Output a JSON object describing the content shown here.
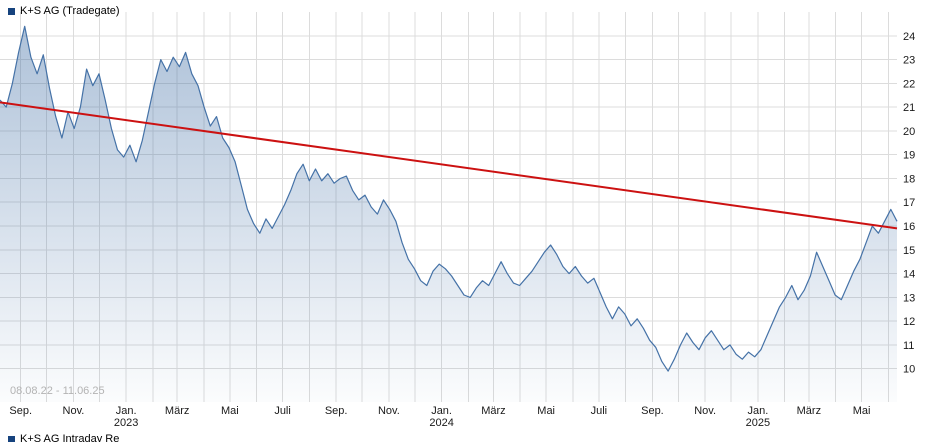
{
  "title": "K+S AG (Tradegate)",
  "legend": {
    "top_label": "K+S AG (Tradegate)",
    "bottom_label": "K+S AG Intraday Re",
    "marker_color": "#16437e"
  },
  "range_label": "08.08.22 - 11.06.25",
  "colors": {
    "line": "#4572a7",
    "area_fill": "#4572a7",
    "trend": "#cc1111",
    "grid": "#dcdcdc",
    "axis_text": "#1a1a1a",
    "range_text": "#b3b3b3",
    "background": "#ffffff"
  },
  "chart_data": {
    "type": "area",
    "title": "K+S AG (Tradegate)",
    "date_start": "08.08.22",
    "date_end": "11.06.25",
    "total_days": 1038,
    "ylim": [
      8.6,
      25.0
    ],
    "grid": true,
    "legend_position": "top-left",
    "ylabel": "",
    "xlabel": "",
    "y_ticks": [
      10,
      11,
      12,
      13,
      14,
      15,
      16,
      17,
      18,
      19,
      20,
      21,
      22,
      23,
      24
    ],
    "x_month_gridlines_days": [
      24,
      54,
      85,
      115,
      146,
      177,
      205,
      236,
      266,
      297,
      327,
      358,
      389,
      419,
      450,
      480,
      511,
      542,
      571,
      602,
      632,
      663,
      693,
      724,
      755,
      785,
      816,
      846,
      877,
      908,
      936,
      967,
      997,
      1028
    ],
    "x_ticks": [
      {
        "day": 24,
        "label": "Sep."
      },
      {
        "day": 85,
        "label": "Nov."
      },
      {
        "day": 146,
        "label": "Jan.",
        "year": "2023"
      },
      {
        "day": 205,
        "label": "März"
      },
      {
        "day": 266,
        "label": "Mai"
      },
      {
        "day": 327,
        "label": "Juli"
      },
      {
        "day": 389,
        "label": "Sep."
      },
      {
        "day": 450,
        "label": "Nov."
      },
      {
        "day": 511,
        "label": "Jan.",
        "year": "2024"
      },
      {
        "day": 571,
        "label": "März"
      },
      {
        "day": 632,
        "label": "Mai"
      },
      {
        "day": 693,
        "label": "Juli"
      },
      {
        "day": 755,
        "label": "Sep."
      },
      {
        "day": 816,
        "label": "Nov."
      },
      {
        "day": 877,
        "label": "Jan.",
        "year": "2025"
      },
      {
        "day": 936,
        "label": "März"
      },
      {
        "day": 997,
        "label": "Mai"
      }
    ],
    "series": [
      {
        "name": "K+S AG (Tradegate)",
        "values": [
          21.3,
          21.0,
          22.0,
          23.3,
          24.4,
          23.1,
          22.4,
          23.2,
          21.8,
          20.6,
          19.7,
          20.8,
          20.1,
          21.0,
          22.6,
          21.9,
          22.4,
          21.3,
          20.1,
          19.2,
          18.9,
          19.4,
          18.7,
          19.6,
          20.8,
          22.0,
          23.0,
          22.5,
          23.1,
          22.7,
          23.3,
          22.4,
          21.9,
          21.0,
          20.2,
          20.6,
          19.7,
          19.3,
          18.7,
          17.7,
          16.7,
          16.1,
          15.7,
          16.3,
          15.9,
          16.4,
          16.9,
          17.5,
          18.2,
          18.6,
          17.9,
          18.4,
          17.9,
          18.2,
          17.8,
          18.0,
          18.1,
          17.5,
          17.1,
          17.3,
          16.8,
          16.5,
          17.1,
          16.7,
          16.2,
          15.3,
          14.6,
          14.2,
          13.7,
          13.5,
          14.1,
          14.4,
          14.2,
          13.9,
          13.5,
          13.1,
          13.0,
          13.4,
          13.7,
          13.5,
          14.0,
          14.5,
          14.0,
          13.6,
          13.5,
          13.8,
          14.1,
          14.5,
          14.9,
          15.2,
          14.8,
          14.3,
          14.0,
          14.3,
          13.9,
          13.6,
          13.8,
          13.2,
          12.6,
          12.1,
          12.6,
          12.3,
          11.8,
          12.1,
          11.7,
          11.2,
          10.9,
          10.3,
          9.9,
          10.4,
          11.0,
          11.5,
          11.1,
          10.8,
          11.3,
          11.6,
          11.2,
          10.8,
          11.0,
          10.6,
          10.4,
          10.7,
          10.5,
          10.8,
          11.4,
          12.0,
          12.6,
          13.0,
          13.5,
          12.9,
          13.3,
          13.9,
          14.9,
          14.3,
          13.7,
          13.1,
          12.9,
          13.5,
          14.1,
          14.6,
          15.3,
          16.0,
          15.7,
          16.2,
          16.7,
          16.2
        ]
      }
    ],
    "trendline": {
      "start_value": 21.2,
      "end_value": 15.9,
      "color": "#cc1111"
    }
  }
}
